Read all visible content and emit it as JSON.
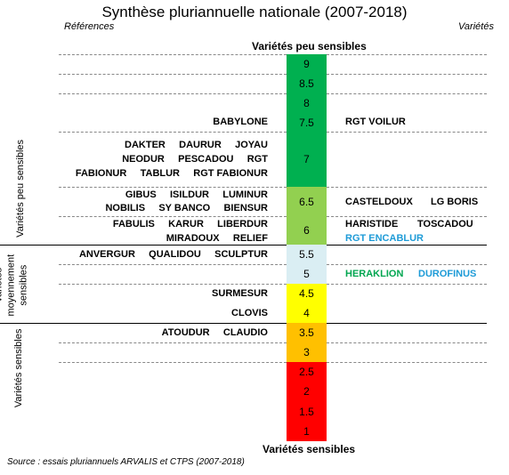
{
  "title": "Synthèse pluriannuelle nationale (2007-2018)",
  "headers": {
    "left": "Références",
    "right": "Variétés"
  },
  "scale": {
    "top_label": "Variétés peu sensibles",
    "bottom_label": "Variétés sensibles",
    "bands": [
      {
        "value": "9",
        "color": "#00b050"
      },
      {
        "value": "8.5",
        "color": "#00b050"
      },
      {
        "value": "8",
        "color": "#00b050"
      },
      {
        "value": "7.5",
        "color": "#00b050"
      },
      {
        "value": "7",
        "color": "#00b050"
      },
      {
        "value": "6.5",
        "color": "#92d050"
      },
      {
        "value": "6",
        "color": "#92d050"
      },
      {
        "value": "5.5",
        "color": "#daeef3"
      },
      {
        "value": "5",
        "color": "#daeef3"
      },
      {
        "value": "4.5",
        "color": "#ffff00"
      },
      {
        "value": "4",
        "color": "#ffff00"
      },
      {
        "value": "3.5",
        "color": "#ffc000"
      },
      {
        "value": "3",
        "color": "#ffc000"
      },
      {
        "value": "2.5",
        "color": "#ff0000"
      },
      {
        "value": "2",
        "color": "#ff0000"
      },
      {
        "value": "1.5",
        "color": "#ff0000"
      },
      {
        "value": "1",
        "color": "#ff0000"
      }
    ]
  },
  "groups": {
    "low": "Variétés peu sensibles",
    "medium": "Variétés moyennement sensibles",
    "high": "Variétés sensibles"
  },
  "references": {
    "babylone": "BABYLONE",
    "r7_1": "DAKTER     DAURUR     JOYAU",
    "r7_2": "NEODUR     PESCADOU     RGT",
    "r7_3": "FABIONUR     TABLUR     RGT FABIONUR",
    "r65_1": "GIBUS     ISILDUR     LUMINUR",
    "r65_2": "NOBILIS     SY BANCO     BIENSUR",
    "r6_1": "FABULIS     KARUR     LIBERDUR",
    "r6_2": "MIRADOUX     RELIEF",
    "r55": "ANVERGUR     QUALIDOU     SCULPTUR",
    "r45": "SURMESUR",
    "r4": "CLOVIS",
    "r35": "ATOUDUR     CLAUDIO"
  },
  "varieties": {
    "v75": "RGT VOILUR",
    "v65a": "CASTELDOUX",
    "v65b": "LG BORIS",
    "v6a": "HARISTIDE",
    "v6b": "TOSCADOU",
    "v6c": "RGT ENCABLUR",
    "v5a": "HERAKLION",
    "v5b": "DUROFINUS"
  },
  "colors": {
    "green_text": "#00a650",
    "blue_text": "#1e9bd7"
  },
  "source": "Source : essais pluriannuels ARVALIS et CTPS (2007-2018)"
}
